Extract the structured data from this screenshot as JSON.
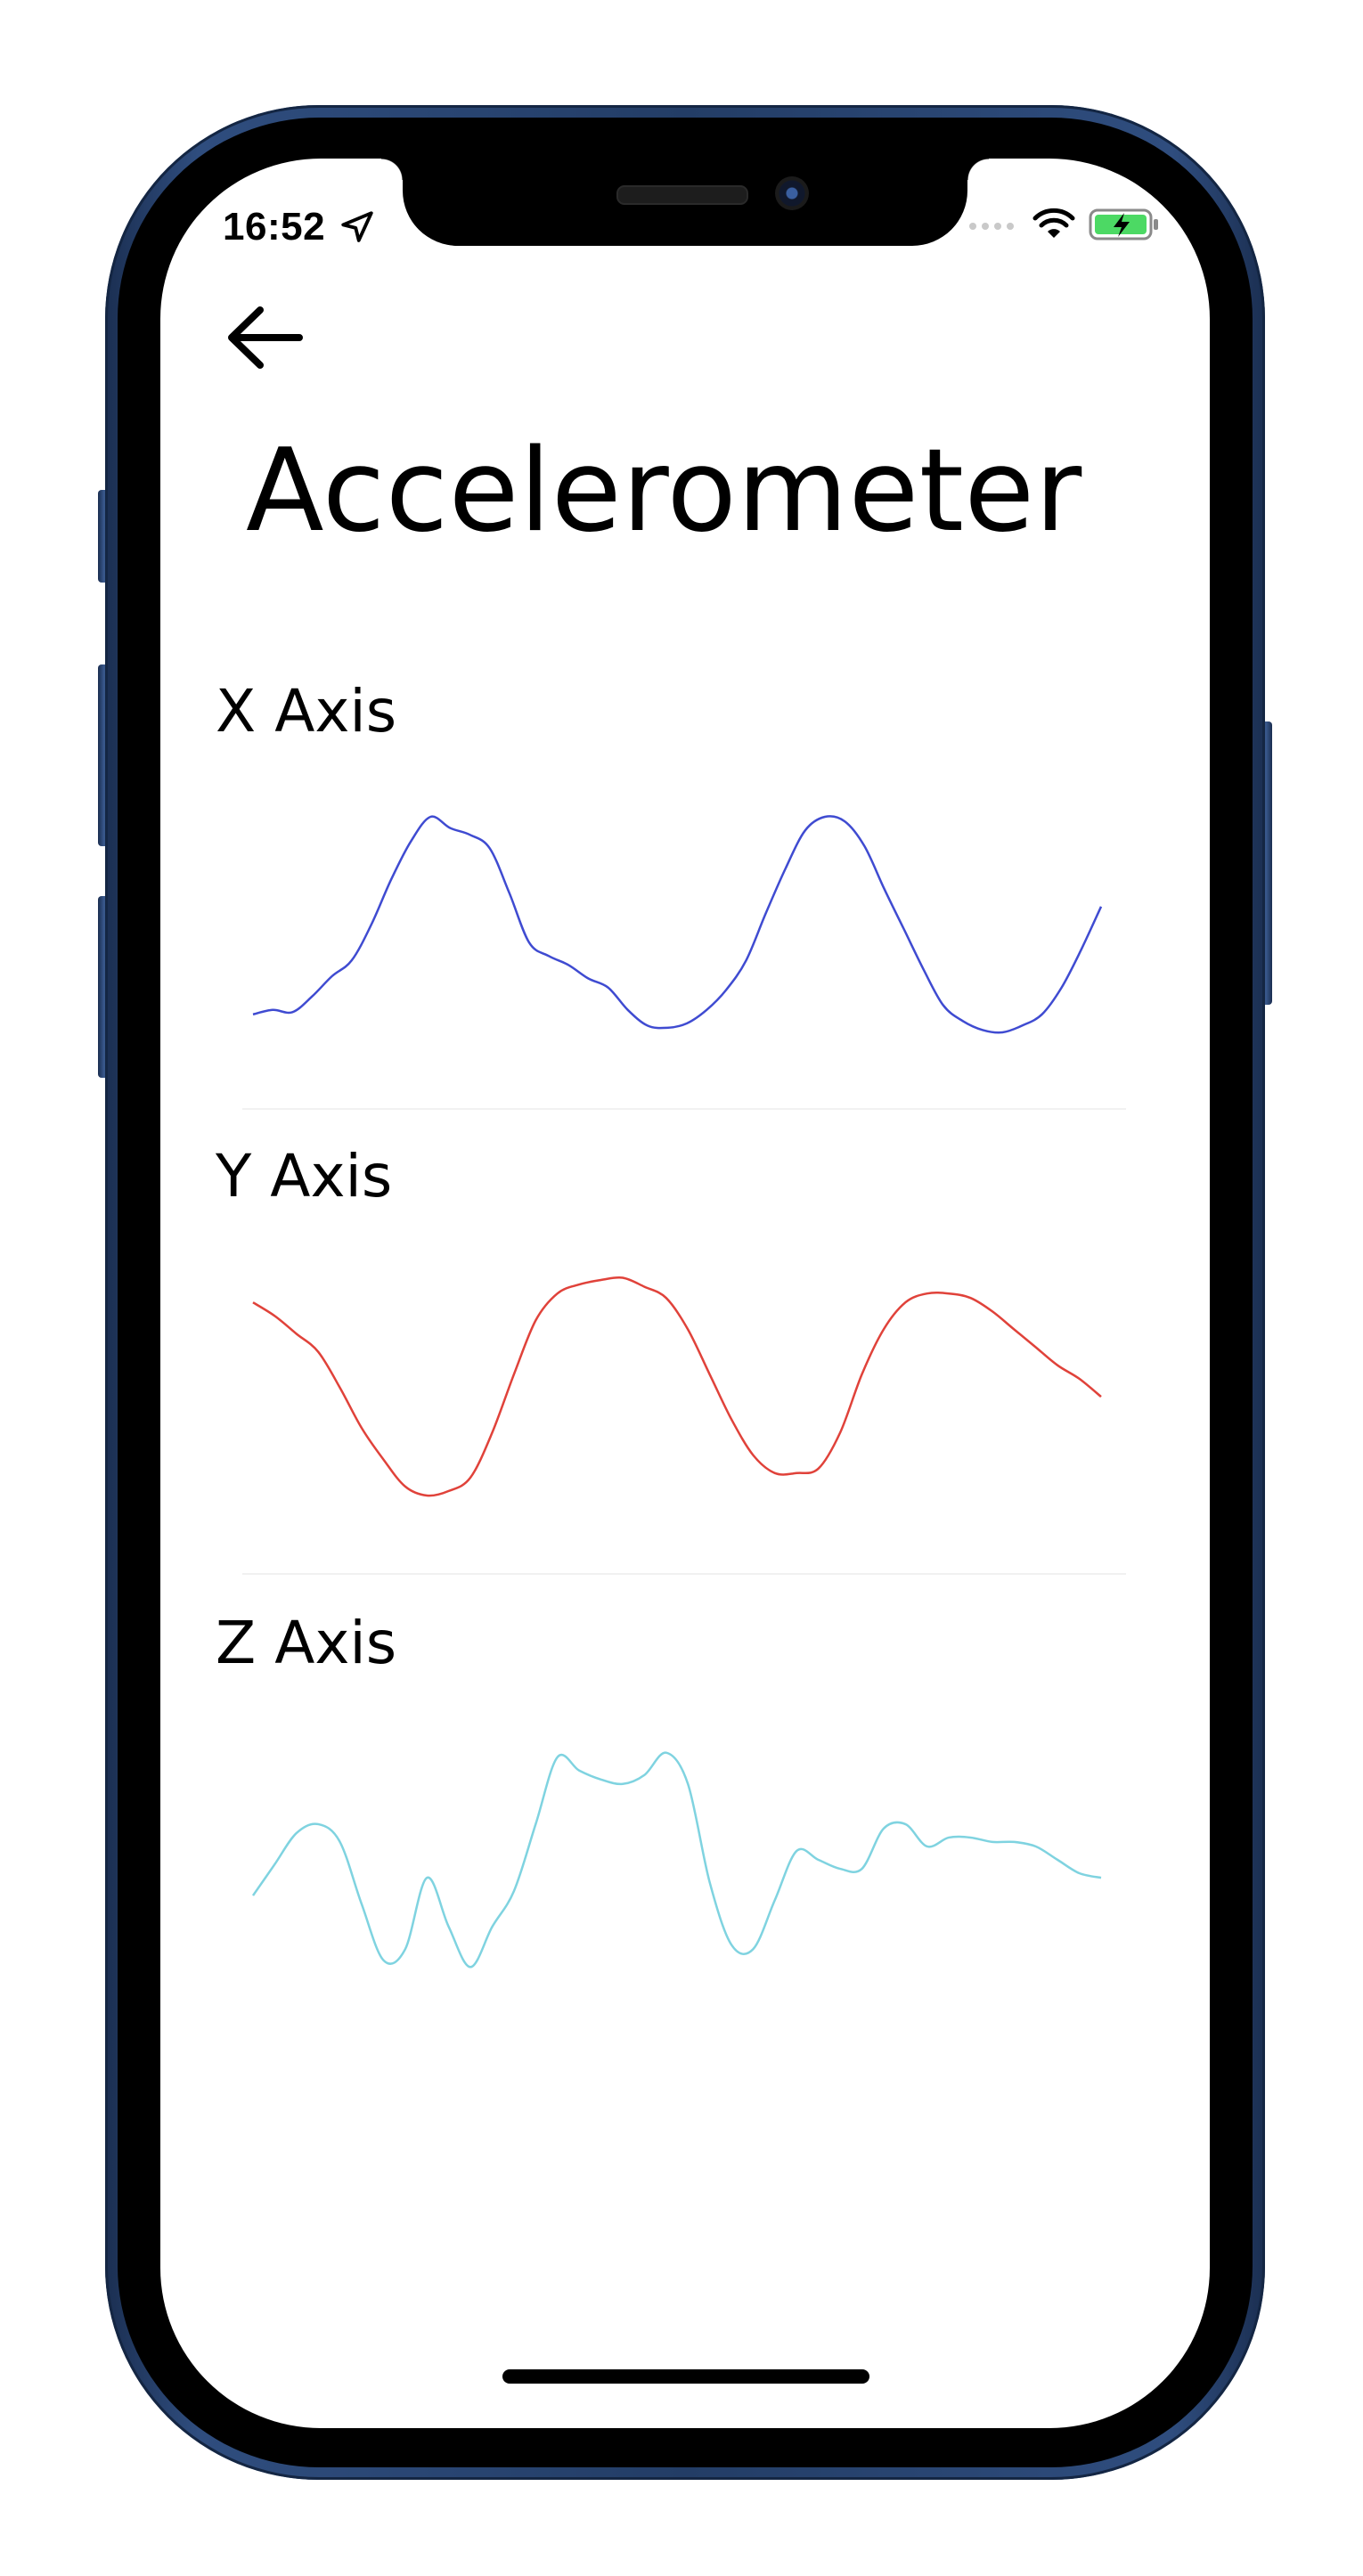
{
  "status_bar": {
    "time": "16:52",
    "icons": [
      "location-arrow-icon",
      "signal-dots-icon",
      "wifi-icon",
      "battery-charging-icon"
    ],
    "battery_color": "#4cd964"
  },
  "header": {
    "back_icon": "arrow-left-icon",
    "title": "Accelerometer"
  },
  "sections": [
    {
      "label": "X Axis",
      "color": "#3f4bd1"
    },
    {
      "label": "Y Axis",
      "color": "#e0423a"
    },
    {
      "label": "Z Axis",
      "color": "#7fd3e0"
    }
  ],
  "chart_data": [
    {
      "type": "line",
      "series": [
        {
          "values": [
            0.1,
            0.12,
            0.11,
            0.18,
            0.27,
            0.34,
            0.5,
            0.7,
            0.87,
            0.98,
            0.93,
            0.9,
            0.84,
            0.64,
            0.42,
            0.36,
            0.32,
            0.26,
            0.22,
            0.12,
            0.05,
            0.04,
            0.06,
            0.12,
            0.21,
            0.34,
            0.55,
            0.75,
            0.92,
            0.98,
            0.96,
            0.85,
            0.66,
            0.48,
            0.3,
            0.14,
            0.07,
            0.03,
            0.02,
            0.05,
            0.1,
            0.22,
            0.39,
            0.58
          ]
        }
      ],
      "color": "#3f4bd1",
      "ylim": [
        0,
        1
      ]
    },
    {
      "type": "line",
      "series": [
        {
          "values": [
            0.88,
            0.82,
            0.74,
            0.66,
            0.5,
            0.32,
            0.18,
            0.06,
            0.02,
            0.04,
            0.1,
            0.3,
            0.56,
            0.8,
            0.92,
            0.96,
            0.98,
            0.99,
            0.95,
            0.9,
            0.76,
            0.56,
            0.36,
            0.2,
            0.12,
            0.12,
            0.14,
            0.3,
            0.56,
            0.76,
            0.88,
            0.92,
            0.92,
            0.9,
            0.84,
            0.76,
            0.68,
            0.6,
            0.54,
            0.46
          ]
        }
      ],
      "color": "#e0423a",
      "ylim": [
        0,
        1
      ]
    },
    {
      "type": "line",
      "series": [
        {
          "values": [
            0.34,
            0.48,
            0.62,
            0.66,
            0.58,
            0.3,
            0.05,
            0.1,
            0.42,
            0.2,
            0.02,
            0.2,
            0.36,
            0.66,
            0.96,
            0.9,
            0.86,
            0.84,
            0.88,
            0.98,
            0.84,
            0.4,
            0.12,
            0.1,
            0.32,
            0.54,
            0.5,
            0.46,
            0.46,
            0.64,
            0.66,
            0.56,
            0.6,
            0.6,
            0.58,
            0.58,
            0.56,
            0.5,
            0.44,
            0.42
          ]
        }
      ],
      "color": "#7fd3e0",
      "ylim": [
        0,
        1
      ]
    }
  ]
}
